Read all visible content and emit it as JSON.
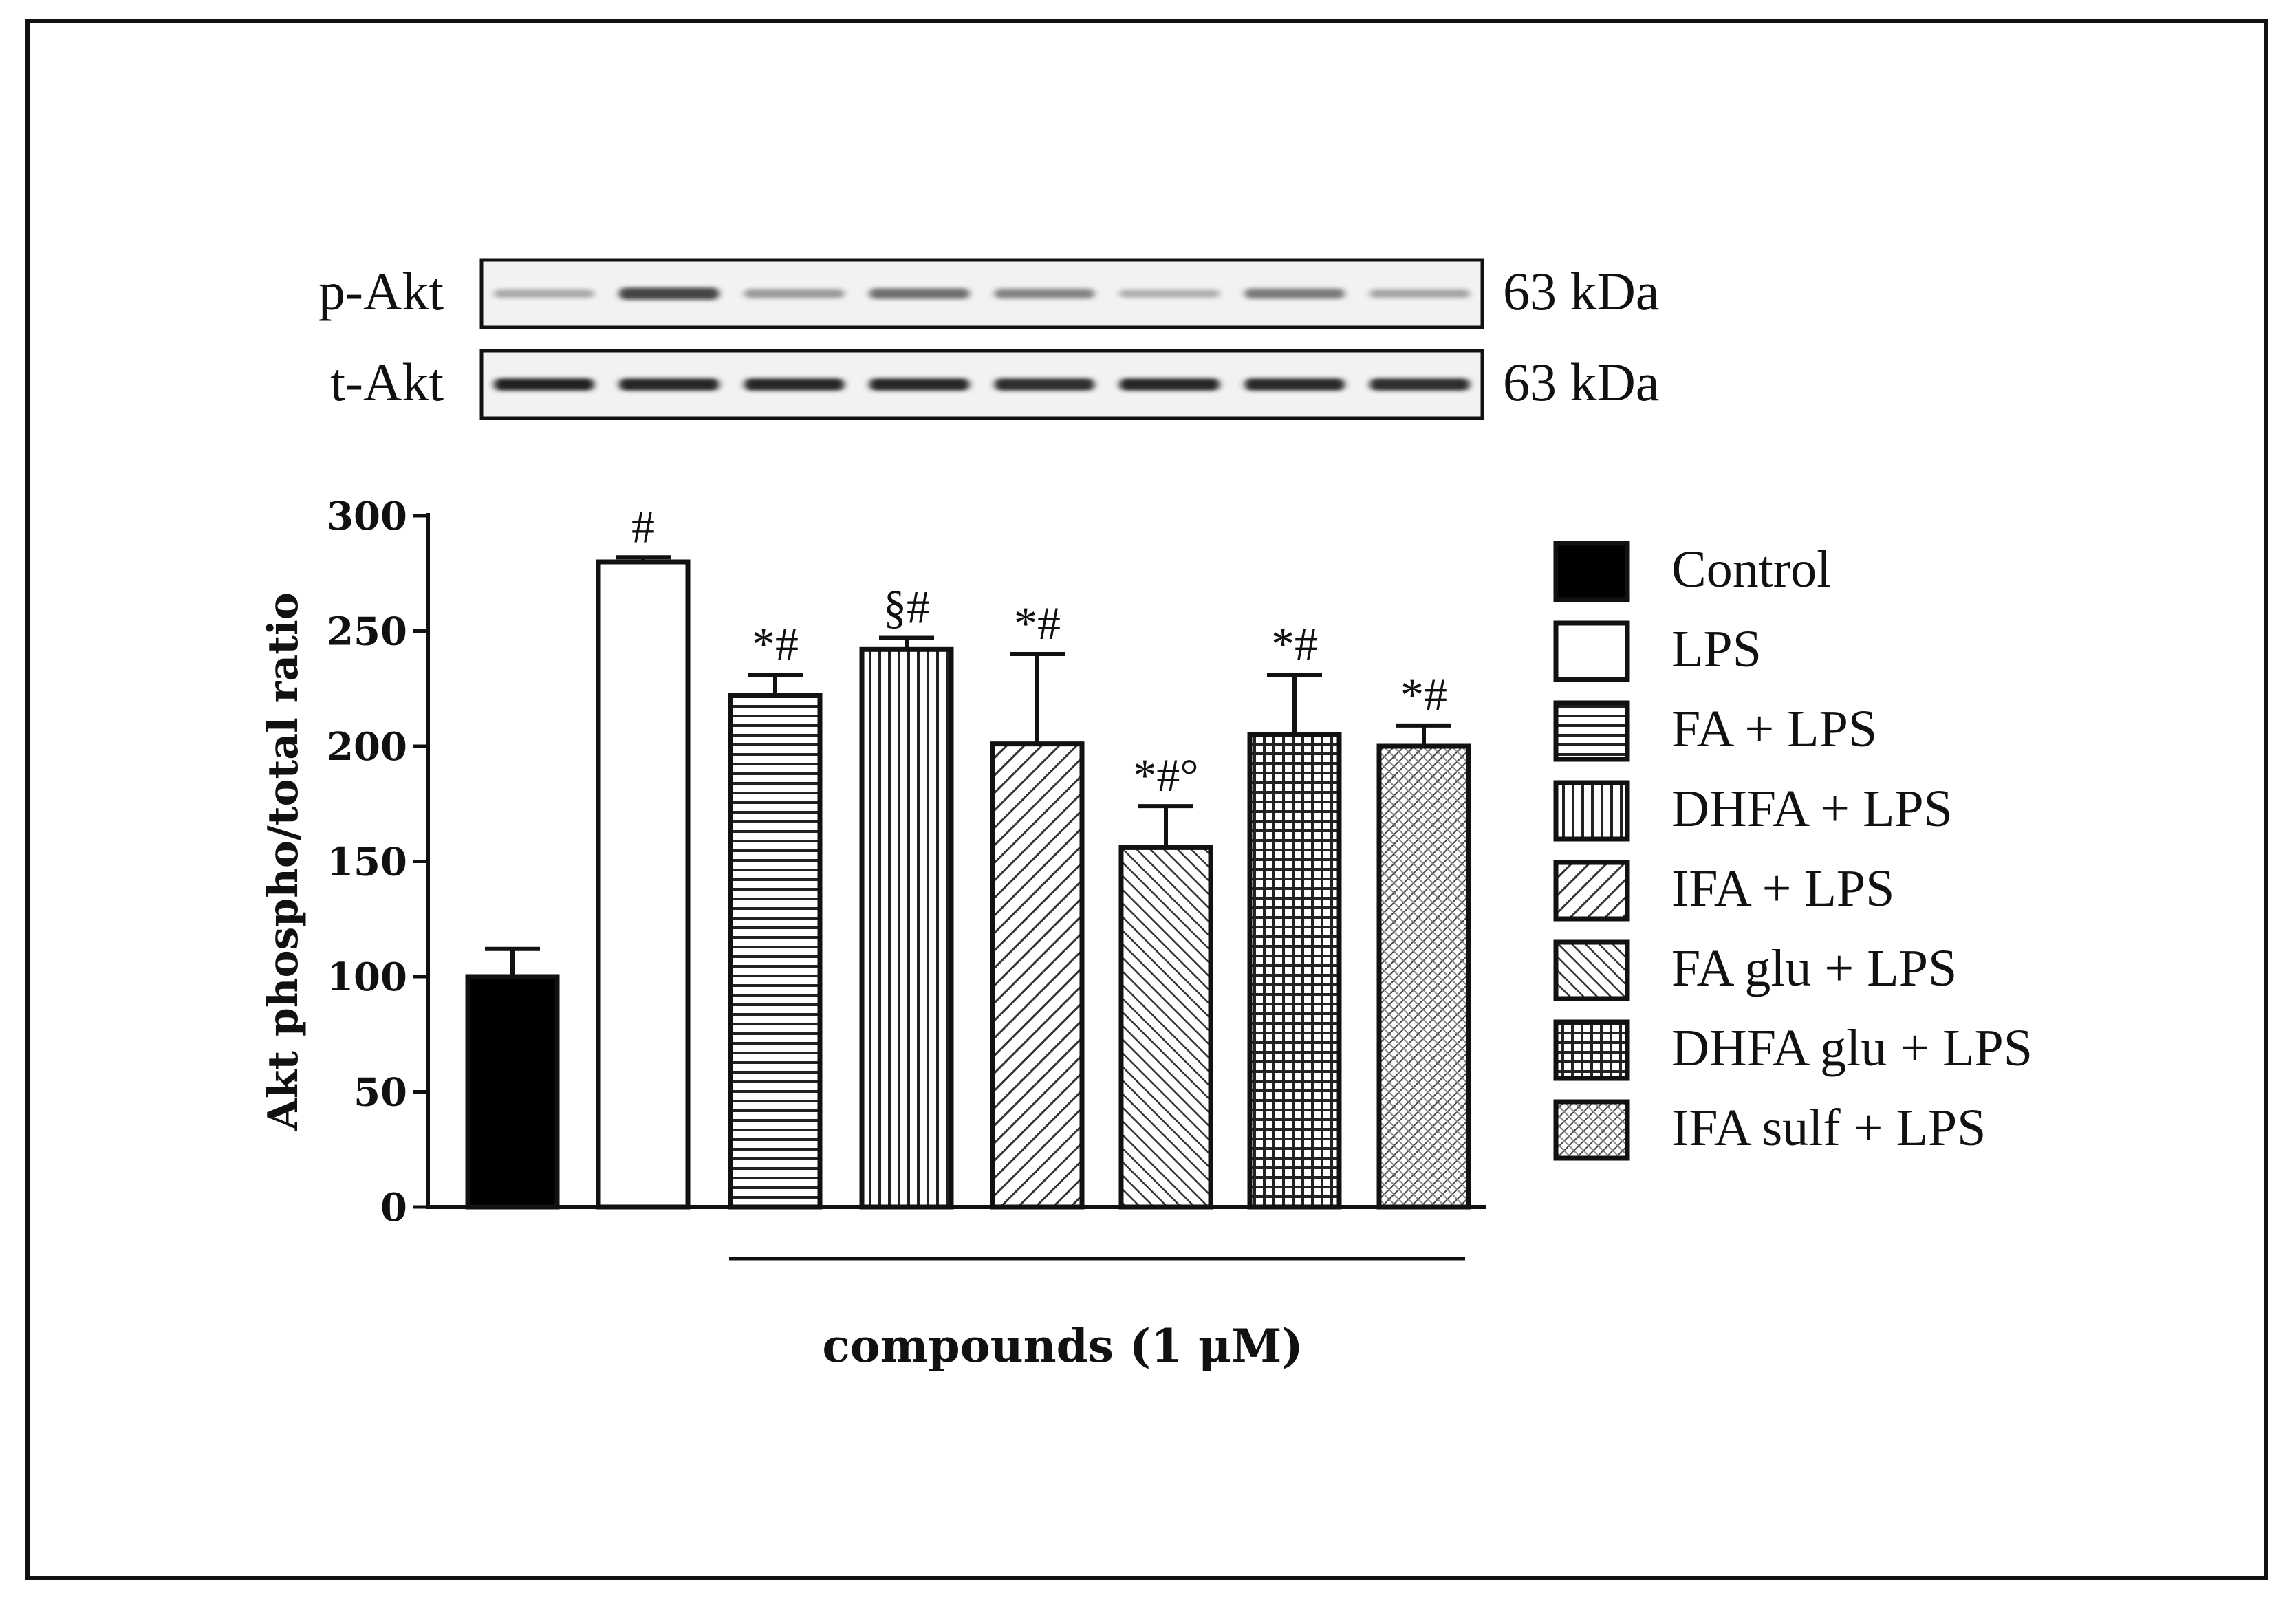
{
  "blots": {
    "rows": [
      {
        "label": "p-Akt",
        "size": "63 kDa",
        "intensities": [
          0.28,
          0.75,
          0.35,
          0.55,
          0.45,
          0.25,
          0.5,
          0.3
        ]
      },
      {
        "label": "t-Akt",
        "size": "63 kDa",
        "intensities": [
          0.92,
          0.9,
          0.9,
          0.9,
          0.85,
          0.9,
          0.88,
          0.85
        ]
      }
    ]
  },
  "chart_data": {
    "type": "bar",
    "title": "",
    "xlabel": "compounds (1 μM)",
    "ylabel": "Akt phospho/total ratio",
    "ylim": [
      0,
      300
    ],
    "yticks": [
      "0",
      "50",
      "100",
      "150",
      "200",
      "250",
      "300"
    ],
    "categories": [
      "Control",
      "LPS",
      "FA + LPS",
      "DHFA + LPS",
      "IFA + LPS",
      "FA glu + LPS",
      "DHFA glu + LPS",
      "IFA sulf + LPS"
    ],
    "values": [
      100,
      280,
      222,
      242,
      201,
      156,
      205,
      200
    ],
    "errors": [
      12,
      2,
      9,
      5,
      39,
      18,
      26,
      9
    ],
    "patterns": [
      "solid",
      "empty",
      "hlines",
      "vlines",
      "diag",
      "diag-fine",
      "grid",
      "diag-dense"
    ],
    "annotations": [
      "",
      "#",
      "*#",
      "§#",
      "*#",
      "*#°",
      "*#",
      "*#"
    ],
    "colors": {
      "bar_stroke": "#111111",
      "solid_fill": "#000000"
    }
  }
}
